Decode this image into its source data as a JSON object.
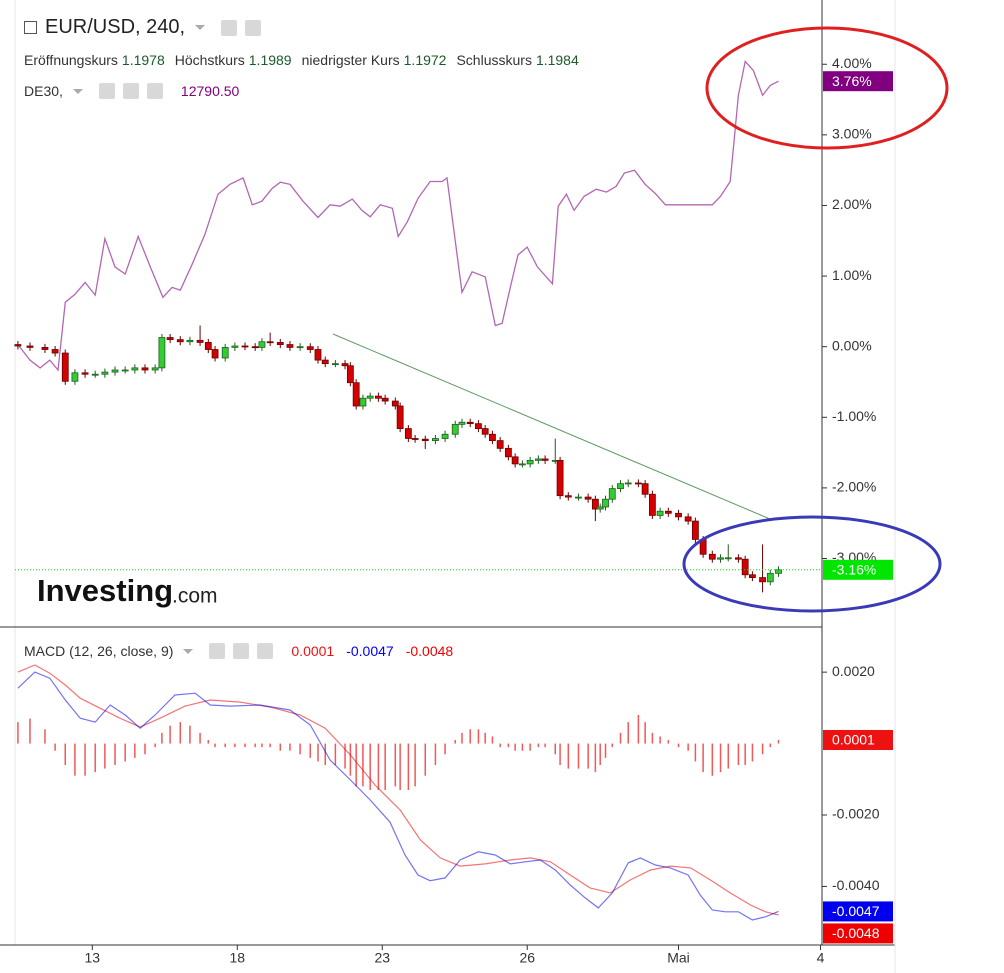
{
  "chart_data": [
    {
      "type": "candlestick",
      "title": "EUR/USD, 240,",
      "ohlc_legend": [
        {
          "label": "Eröffnungskurs",
          "value": 1.1978
        },
        {
          "label": "Höchstkurs",
          "value": 1.1989
        },
        {
          "label": "niedrigster Kurs",
          "value": 1.1972
        },
        {
          "label": "Schlusskurs",
          "value": 1.1984
        }
      ],
      "watermark": [
        "Investing",
        ".com"
      ],
      "xlim": [
        0,
        16.7
      ],
      "xticks": [
        {
          "value": 1.6,
          "label": "13"
        },
        {
          "value": 4.6,
          "label": "18"
        },
        {
          "value": 7.6,
          "label": "23"
        },
        {
          "value": 10.6,
          "label": "26"
        },
        {
          "value": 13.73,
          "label": "Mai"
        },
        {
          "value": 16.67,
          "label": "4"
        }
      ],
      "ylim": [
        -3.97,
        4.91
      ],
      "yticks": [
        {
          "value": 4,
          "label": "4.00%"
        },
        {
          "value": 3,
          "label": "3.00%"
        },
        {
          "value": 2,
          "label": "2.00%"
        },
        {
          "value": 1,
          "label": "1.00%"
        },
        {
          "value": 0,
          "label": "0.00%"
        },
        {
          "value": -1,
          "label": "-1.00%"
        },
        {
          "value": -2,
          "label": "-2.00%"
        },
        {
          "value": -3,
          "label": "-3.00%"
        }
      ],
      "up_color": "#33cc33",
      "down_color": "#d40000",
      "last_color": "#00e600",
      "last_value_label": "-3.16%",
      "x": [
        0.06,
        0.31,
        0.62,
        0.83,
        1.04,
        1.24,
        1.45,
        1.66,
        1.86,
        2.07,
        2.28,
        2.48,
        2.69,
        2.9,
        3.04,
        3.21,
        3.42,
        3.62,
        3.83,
        4.0,
        4.14,
        4.35,
        4.55,
        4.76,
        4.97,
        5.11,
        5.28,
        5.49,
        5.69,
        5.9,
        6.11,
        6.27,
        6.42,
        6.63,
        6.83,
        6.94,
        7.06,
        7.2,
        7.35,
        7.52,
        7.66,
        7.87,
        7.97,
        8.14,
        8.28,
        8.49,
        8.7,
        8.9,
        9.11,
        9.25,
        9.42,
        9.59,
        9.73,
        9.88,
        10.04,
        10.21,
        10.35,
        10.5,
        10.66,
        10.83,
        10.97,
        11.18,
        11.28,
        11.45,
        11.66,
        11.86,
        12.01,
        12.11,
        12.22,
        12.36,
        12.53,
        12.69,
        12.9,
        13.04,
        13.19,
        13.35,
        13.52,
        13.73,
        13.93,
        14.08,
        14.24,
        14.43,
        14.6,
        14.76,
        14.97,
        15.11,
        15.26,
        15.47,
        15.63,
        15.8
      ],
      "open": [
        0.03,
        0.01,
        -0.01,
        -0.04,
        -0.09,
        -0.49,
        -0.37,
        -0.39,
        -0.39,
        -0.36,
        -0.33,
        -0.33,
        -0.3,
        -0.33,
        -0.3,
        0.13,
        0.1,
        0.07,
        0.09,
        0.06,
        -0.04,
        -0.16,
        -0.01,
        0.01,
        0.0,
        -0.01,
        0.07,
        0.06,
        0.03,
        -0.01,
        0.0,
        -0.04,
        -0.19,
        -0.24,
        -0.24,
        -0.27,
        -0.51,
        -0.84,
        -0.73,
        -0.7,
        -0.73,
        -0.77,
        -0.84,
        -1.16,
        -1.3,
        -1.31,
        -1.33,
        -1.3,
        -1.24,
        -1.1,
        -1.07,
        -1.09,
        -1.16,
        -1.24,
        -1.33,
        -1.44,
        -1.56,
        -1.66,
        -1.66,
        -1.61,
        -1.59,
        -1.61,
        -1.61,
        -2.11,
        -2.13,
        -2.13,
        -2.16,
        -2.3,
        -2.27,
        -2.16,
        -2.01,
        -1.94,
        -1.93,
        -1.94,
        -2.09,
        -2.39,
        -2.33,
        -2.36,
        -2.41,
        -2.47,
        -2.73,
        -2.94,
        -3.01,
        -2.99,
        -2.99,
        -3.01,
        -3.23,
        -3.27,
        -3.33,
        -3.21
      ],
      "high": [
        0.08,
        0.06,
        0.04,
        0.01,
        -0.04,
        -0.32,
        -0.32,
        -0.34,
        -0.31,
        -0.28,
        -0.28,
        -0.25,
        -0.25,
        -0.25,
        0.18,
        0.18,
        0.15,
        0.14,
        0.3,
        0.11,
        0.01,
        0.04,
        0.06,
        0.06,
        0.05,
        0.12,
        0.2,
        0.11,
        0.08,
        0.05,
        0.05,
        0.01,
        -0.14,
        -0.19,
        -0.19,
        -0.22,
        -0.46,
        -0.68,
        -0.65,
        -0.65,
        -0.68,
        -0.72,
        -0.79,
        -1.11,
        -1.25,
        -1.26,
        -1.25,
        -1.19,
        -1.05,
        -1.02,
        -1.02,
        -1.04,
        -1.11,
        -1.19,
        -1.28,
        -1.39,
        -1.51,
        -1.61,
        -1.56,
        -1.54,
        -1.54,
        -1.3,
        -1.56,
        -2.06,
        -2.08,
        -2.08,
        -2.11,
        -2.22,
        -2.11,
        -1.96,
        -1.89,
        -1.88,
        -1.88,
        -1.89,
        -2.04,
        -2.28,
        -2.28,
        -2.31,
        -2.36,
        -2.42,
        -2.68,
        -2.89,
        -2.94,
        -2.8,
        -2.94,
        -2.96,
        -3.18,
        -2.8,
        -3.16,
        -3.11
      ],
      "low": [
        -0.04,
        -0.06,
        -0.09,
        -0.14,
        -0.54,
        -0.54,
        -0.44,
        -0.44,
        -0.44,
        -0.41,
        -0.38,
        -0.38,
        -0.38,
        -0.38,
        -0.35,
        0.05,
        0.02,
        0.02,
        0.01,
        -0.09,
        -0.21,
        -0.21,
        -0.06,
        -0.05,
        -0.06,
        -0.06,
        0.01,
        -0.02,
        -0.06,
        -0.06,
        -0.09,
        -0.24,
        -0.29,
        -0.29,
        -0.32,
        -0.56,
        -0.89,
        -0.89,
        -0.78,
        -0.78,
        -0.82,
        -0.89,
        -1.21,
        -1.35,
        -1.36,
        -1.45,
        -1.38,
        -1.35,
        -1.29,
        -1.15,
        -1.14,
        -1.21,
        -1.29,
        -1.38,
        -1.49,
        -1.61,
        -1.71,
        -1.71,
        -1.71,
        -1.66,
        -1.66,
        -1.66,
        -2.16,
        -2.18,
        -2.18,
        -2.21,
        -2.47,
        -2.35,
        -2.32,
        -2.21,
        -2.06,
        -1.99,
        -1.99,
        -2.14,
        -2.44,
        -2.44,
        -2.41,
        -2.46,
        -2.52,
        -2.78,
        -2.99,
        -3.06,
        -3.06,
        -3.04,
        -3.06,
        -3.28,
        -3.32,
        -3.48,
        -3.38,
        -3.26
      ],
      "close": [
        0.01,
        -0.01,
        -0.04,
        -0.09,
        -0.49,
        -0.37,
        -0.39,
        -0.39,
        -0.36,
        -0.33,
        -0.33,
        -0.3,
        -0.33,
        -0.3,
        0.13,
        0.1,
        0.07,
        0.09,
        0.06,
        -0.04,
        -0.16,
        -0.01,
        0.01,
        0.0,
        -0.01,
        0.07,
        0.06,
        0.03,
        -0.01,
        0.0,
        -0.04,
        -0.19,
        -0.24,
        -0.24,
        -0.27,
        -0.51,
        -0.84,
        -0.73,
        -0.7,
        -0.73,
        -0.77,
        -0.84,
        -1.16,
        -1.3,
        -1.31,
        -1.33,
        -1.3,
        -1.24,
        -1.1,
        -1.07,
        -1.09,
        -1.16,
        -1.24,
        -1.33,
        -1.44,
        -1.56,
        -1.66,
        -1.66,
        -1.61,
        -1.59,
        -1.61,
        -1.61,
        -2.11,
        -2.13,
        -2.13,
        -2.16,
        -2.3,
        -2.27,
        -2.16,
        -2.01,
        -1.94,
        -1.93,
        -1.94,
        -2.09,
        -2.39,
        -2.33,
        -2.36,
        -2.41,
        -2.47,
        -2.73,
        -2.94,
        -3.01,
        -2.99,
        -2.99,
        -3.01,
        -3.23,
        -3.27,
        -3.33,
        -3.21,
        -3.16
      ],
      "overlay": {
        "name": "DE30,",
        "price": {
          "value": 12790.5,
          "label": "12790.50"
        },
        "color": "#800080",
        "last_value_label": "3.76%",
        "x": [
          0.06,
          0.31,
          0.52,
          0.72,
          0.89,
          1.04,
          1.24,
          1.45,
          1.66,
          1.86,
          2.07,
          2.28,
          2.55,
          2.8,
          3.06,
          3.25,
          3.42,
          3.66,
          3.93,
          4.2,
          4.45,
          4.72,
          4.91,
          5.11,
          5.32,
          5.49,
          5.69,
          5.96,
          6.27,
          6.52,
          6.73,
          6.98,
          7.18,
          7.35,
          7.56,
          7.81,
          7.93,
          8.12,
          8.34,
          8.59,
          8.84,
          8.94,
          9.25,
          9.46,
          9.73,
          9.94,
          10.08,
          10.25,
          10.41,
          10.6,
          10.81,
          11.12,
          11.24,
          11.41,
          11.57,
          11.78,
          12.03,
          12.24,
          12.44,
          12.61,
          12.82,
          13.04,
          13.25,
          13.46,
          13.71,
          13.98,
          14.43,
          14.6,
          14.8,
          14.97,
          15.11,
          15.28,
          15.47,
          15.63,
          15.8
        ],
        "values": [
          0.03,
          -0.19,
          -0.3,
          -0.19,
          -0.33,
          0.63,
          0.74,
          0.91,
          0.73,
          1.53,
          1.13,
          1.03,
          1.56,
          1.13,
          0.7,
          0.84,
          0.8,
          1.16,
          1.59,
          2.16,
          2.3,
          2.39,
          2.01,
          2.06,
          2.24,
          2.33,
          2.3,
          2.06,
          1.83,
          2.01,
          1.99,
          2.09,
          1.93,
          1.84,
          2.01,
          1.96,
          1.56,
          1.77,
          2.1,
          2.34,
          2.34,
          2.39,
          0.77,
          1.06,
          0.99,
          0.3,
          0.33,
          0.84,
          1.3,
          1.41,
          1.13,
          0.89,
          1.99,
          2.16,
          1.93,
          2.13,
          2.23,
          2.19,
          2.27,
          2.46,
          2.5,
          2.3,
          2.17,
          2.01,
          2.01,
          2.01,
          2.01,
          2.13,
          2.34,
          3.56,
          4.04,
          3.91,
          3.56,
          3.7,
          3.76
        ]
      }
    },
    {
      "type": "macd",
      "title": "MACD (12, 26, close, 9)",
      "ylim": [
        -0.00564,
        0.00318
      ],
      "yticks": [
        {
          "value": 0.002,
          "label": "0.0020"
        },
        {
          "value": -0.002,
          "label": "-0.0020"
        },
        {
          "value": -0.004,
          "label": "-0.0040"
        }
      ],
      "histogram": {
        "color": "#ee1111",
        "last_label": "0.0001",
        "values": [
          0.0006,
          0.0007,
          0.0004,
          -0.0002,
          -0.0006,
          -0.0009,
          -0.0009,
          -0.0008,
          -0.0007,
          -0.0006,
          -0.0005,
          -0.0004,
          -0.0003,
          -0.0001,
          0.0003,
          0.0005,
          0.0006,
          0.0005,
          0.0003,
          0.0001,
          -0.0001,
          -0.0001,
          -0.0001,
          -0.0001,
          -0.0001,
          -0.0001,
          -0.0001,
          -0.0002,
          -0.0002,
          -0.0003,
          -0.0004,
          -0.0005,
          -0.0006,
          -0.0006,
          -0.0007,
          -0.0009,
          -0.0012,
          -0.0012,
          -0.0013,
          -0.0013,
          -0.0013,
          -0.0012,
          -0.0013,
          -0.0013,
          -0.0012,
          -0.0009,
          -0.0006,
          -0.0003,
          0.0001,
          0.0003,
          0.0004,
          0.0004,
          0.0003,
          0.0002,
          -0.0001,
          -0.0001,
          -0.0002,
          -0.0002,
          -0.0002,
          -0.0001,
          -0.0001,
          -0.0003,
          -0.0006,
          -0.0007,
          -0.0007,
          -0.0007,
          -0.0008,
          -0.0006,
          -0.0004,
          -0.0001,
          0.0003,
          0.0006,
          0.0008,
          0.0006,
          0.0003,
          0.0002,
          0.0001,
          -0.0001,
          -0.0002,
          -0.0005,
          -0.0008,
          -0.0009,
          -0.0008,
          -0.0007,
          -0.0006,
          -0.0006,
          -0.0005,
          -0.0003,
          -0.0001,
          0.0001
        ]
      },
      "macd": {
        "color": "#0000ee",
        "last_label": "-0.0047",
        "x": [
          0.06,
          0.41,
          0.72,
          1.04,
          1.35,
          1.66,
          1.97,
          2.28,
          2.59,
          2.9,
          3.31,
          3.73,
          4.04,
          4.45,
          5.07,
          5.69,
          6.11,
          6.52,
          6.94,
          7.35,
          7.76,
          8.07,
          8.34,
          8.59,
          8.9,
          9.21,
          9.59,
          9.94,
          10.25,
          10.56,
          10.87,
          11.18,
          11.49,
          11.8,
          12.07,
          12.36,
          12.69,
          12.94,
          13.25,
          13.56,
          13.93,
          14.18,
          14.43,
          14.7,
          14.97,
          15.26,
          15.53,
          15.8
        ],
        "values": [
          0.00155,
          0.002,
          0.00183,
          0.00122,
          0.00071,
          0.0006,
          0.00108,
          0.0008,
          0.00043,
          0.0008,
          0.00136,
          0.00141,
          0.00108,
          0.00105,
          0.00108,
          0.00094,
          0.00052,
          -0.00046,
          -0.00102,
          -0.00158,
          -0.0022,
          -0.00312,
          -0.00368,
          -0.00384,
          -0.00376,
          -0.00326,
          -0.00303,
          -0.00312,
          -0.00337,
          -0.00331,
          -0.00326,
          -0.00354,
          -0.00396,
          -0.00432,
          -0.0046,
          -0.00418,
          -0.00334,
          -0.0032,
          -0.0034,
          -0.00348,
          -0.00368,
          -0.00424,
          -0.00466,
          -0.00471,
          -0.00471,
          -0.00494,
          -0.00485,
          -0.0047
        ]
      },
      "signal": {
        "color": "#ee0000",
        "last_label": "-0.0048",
        "x": [
          0.06,
          0.41,
          0.72,
          1.04,
          1.35,
          1.76,
          2.17,
          2.59,
          3.0,
          3.52,
          4.04,
          4.66,
          5.28,
          5.9,
          6.42,
          6.94,
          7.45,
          7.97,
          8.39,
          8.8,
          9.21,
          9.73,
          10.25,
          10.66,
          11.08,
          11.49,
          11.9,
          12.32,
          12.73,
          13.15,
          13.56,
          13.98,
          14.39,
          14.8,
          15.22,
          15.53,
          15.8
        ],
        "values": [
          0.002,
          0.0022,
          0.00197,
          0.00164,
          0.00127,
          0.00099,
          0.00071,
          0.00046,
          0.00071,
          0.00105,
          0.00122,
          0.00116,
          0.00102,
          0.0008,
          0.00043,
          -0.00032,
          -0.00116,
          -0.00186,
          -0.0027,
          -0.0032,
          -0.00343,
          -0.00337,
          -0.00326,
          -0.0032,
          -0.00331,
          -0.00368,
          -0.00404,
          -0.00418,
          -0.00382,
          -0.00354,
          -0.00343,
          -0.00348,
          -0.00382,
          -0.00418,
          -0.00452,
          -0.00471,
          -0.0048
        ]
      }
    }
  ]
}
